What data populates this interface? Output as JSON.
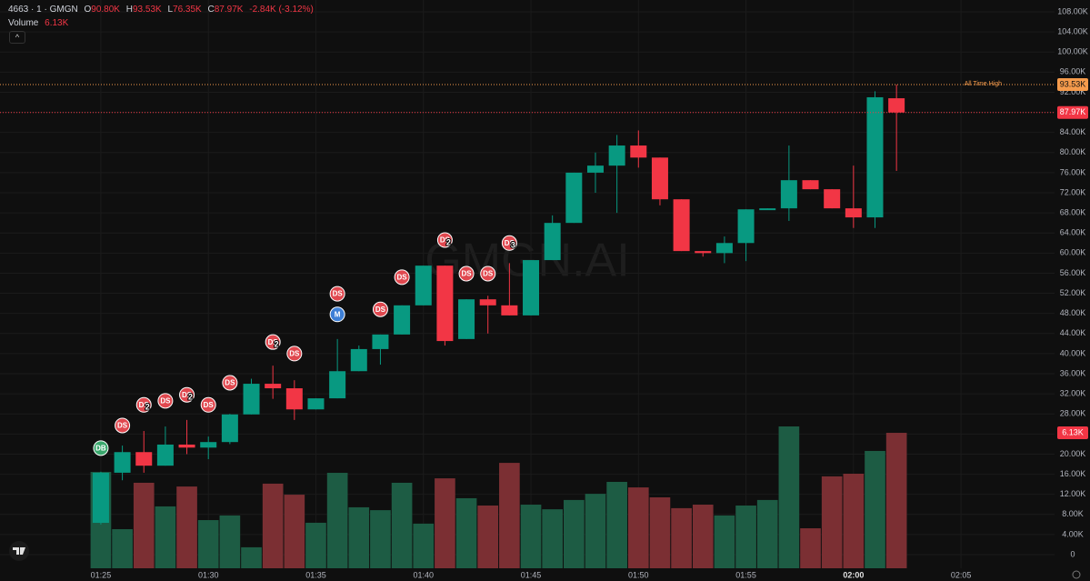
{
  "chart_data": {
    "type": "candlestick",
    "title": "4663 · 1 · GMGN",
    "legend_ohlc": {
      "open_key": "O",
      "open": "90.80K",
      "high_key": "H",
      "high": "93.53K",
      "low_key": "L",
      "low": "76.35K",
      "close_key": "C",
      "close": "87.97K",
      "change": "-2.84K (-3.12%)"
    },
    "volume_legend": {
      "name": "Volume",
      "value": "6.13K"
    },
    "watermark": "GMGN.AI",
    "up_color": "#089981",
    "down_color": "#f23645",
    "open": [
      6.33,
      16.3,
      20.4,
      17.7,
      21.9,
      21.3,
      22.4,
      27.9,
      34.0,
      33.1,
      28.9,
      31.1,
      36.5,
      40.9,
      43.8,
      49.6,
      57.5,
      42.9,
      50.8,
      49.6,
      47.6,
      58.6,
      66.0,
      76.0,
      77.4,
      81.4,
      79.0,
      70.7,
      60.4,
      60.0,
      62.0,
      68.7,
      68.9,
      74.5,
      72.7,
      68.9,
      67.1,
      90.8
    ],
    "high": [
      16.5,
      21.7,
      24.6,
      25.5,
      26.8,
      23.5,
      28.0,
      35.0,
      37.6,
      34.7,
      31.1,
      42.9,
      41.6,
      43.8,
      49.6,
      57.5,
      57.5,
      50.8,
      51.5,
      58.0,
      58.6,
      67.5,
      76.0,
      80.0,
      83.5,
      84.4,
      79.0,
      70.7,
      60.4,
      63.3,
      68.7,
      68.9,
      81.4,
      74.5,
      72.7,
      77.4,
      92.2,
      93.53
    ],
    "low": [
      6.0,
      14.8,
      16.3,
      17.7,
      20.0,
      19.0,
      22.0,
      27.9,
      31.0,
      26.8,
      28.9,
      31.1,
      36.5,
      37.8,
      43.8,
      49.6,
      41.6,
      42.9,
      44.0,
      47.6,
      47.6,
      58.6,
      66.0,
      72.0,
      68.0,
      77.0,
      69.5,
      60.4,
      59.3,
      58.0,
      58.4,
      68.7,
      66.4,
      72.7,
      68.9,
      65.0,
      65.0,
      76.35
    ],
    "close": [
      16.3,
      20.4,
      17.7,
      21.9,
      21.3,
      22.4,
      27.9,
      34.0,
      33.1,
      28.9,
      31.1,
      36.5,
      40.9,
      43.8,
      49.6,
      57.5,
      42.5,
      50.8,
      49.6,
      47.6,
      58.6,
      66.0,
      76.0,
      77.4,
      81.4,
      79.0,
      70.7,
      60.4,
      60.0,
      62.0,
      68.7,
      68.9,
      74.5,
      72.7,
      68.9,
      67.1,
      91.0,
      87.97
    ],
    "volume": {
      "up_color": "#1d5c44",
      "down_color": "#7b2f33",
      "axis": "y2",
      "values": [
        4.36,
        1.77,
        3.87,
        2.8,
        3.7,
        2.18,
        2.39,
        0.95,
        3.83,
        3.33,
        2.06,
        4.32,
        2.76,
        2.63,
        3.87,
        2.02,
        4.07,
        3.17,
        2.84,
        4.77,
        2.88,
        2.67,
        3.09,
        3.37,
        3.91,
        3.66,
        3.21,
        2.72,
        2.88,
        2.39,
        2.84,
        3.09,
        6.42,
        1.81,
        4.16,
        4.28,
        5.31,
        6.13
      ],
      "value_labels": [
        null,
        null,
        null,
        null,
        null,
        null,
        null,
        null,
        null,
        null,
        null,
        null,
        null,
        null,
        null,
        null,
        null,
        null,
        null,
        null,
        null,
        null,
        null,
        null,
        null,
        null,
        null,
        null,
        null,
        null,
        null,
        null,
        null,
        null,
        null,
        null,
        null,
        "6.13K"
      ]
    },
    "xlim": [
      -4.69,
      44.35
    ],
    "xticks": [
      {
        "value": 0,
        "label": "01:25"
      },
      {
        "value": 5,
        "label": "01:30"
      },
      {
        "value": 10,
        "label": "01:35"
      },
      {
        "value": 15,
        "label": "01:40"
      },
      {
        "value": 20,
        "label": "01:45"
      },
      {
        "value": 25,
        "label": "01:50"
      },
      {
        "value": 30,
        "label": "01:55"
      },
      {
        "value": 35,
        "label": "02:00"
      },
      {
        "value": 40,
        "label": "02:05"
      }
    ],
    "ylim": [
      -2.71,
      110.35
    ],
    "y2lim": [
      0,
      25.72
    ],
    "yticks": [
      0,
      {
        "value": 4,
        "label": "4.00K"
      },
      {
        "value": 8,
        "label": "8.00K"
      },
      {
        "value": 12,
        "label": "12.00K"
      },
      {
        "value": 16,
        "label": "16.00K"
      },
      {
        "value": 20,
        "label": "20.00K"
      },
      {
        "value": 24,
        "label": "24.00K"
      },
      {
        "value": 28,
        "label": "28.00K"
      },
      {
        "value": 32,
        "label": "32.00K"
      },
      {
        "value": 36,
        "label": "36.00K"
      },
      {
        "value": 40,
        "label": "40.00K"
      },
      {
        "value": 44,
        "label": "44.00K"
      },
      {
        "value": 48,
        "label": "48.00K"
      },
      {
        "value": 52,
        "label": "52.00K"
      },
      {
        "value": 56,
        "label": "56.00K"
      },
      {
        "value": 60,
        "label": "60.00K"
      },
      {
        "value": 64,
        "label": "64.00K"
      },
      {
        "value": 68,
        "label": "68.00K"
      },
      {
        "value": 72,
        "label": "72.00K"
      },
      {
        "value": 76,
        "label": "76.00K"
      },
      {
        "value": 80,
        "label": "80.00K"
      },
      {
        "value": 84,
        "label": "84.00K"
      },
      {
        "value": 88,
        "label": "88.00K"
      },
      {
        "value": 92,
        "label": "92.00K"
      },
      {
        "value": 96,
        "label": "96.00K"
      },
      {
        "value": 100,
        "label": "100.00K"
      },
      {
        "value": 104,
        "label": "104.00K"
      },
      {
        "value": 108,
        "label": "108.00K"
      }
    ],
    "grid": true,
    "price_lines": [
      {
        "name": "All Time High",
        "value": 93.53,
        "label": "93.53K",
        "color": "#f59b4c"
      },
      {
        "value": 87.97,
        "label": "87.97K",
        "color": "#f23645"
      }
    ],
    "markers": [
      {
        "x": 0,
        "y": 21.2,
        "label": "DB",
        "color": "#3aa76d"
      },
      {
        "x": 1,
        "y": 25.7,
        "label": "DS",
        "color": "#e0484f"
      },
      {
        "x": 2,
        "y": 29.8,
        "label": "DS",
        "count": "2",
        "color": "#e0484f"
      },
      {
        "x": 3,
        "y": 30.6,
        "label": "DS",
        "color": "#e0484f"
      },
      {
        "x": 4,
        "y": 31.8,
        "label": "DS",
        "count": "2",
        "color": "#e0484f"
      },
      {
        "x": 5,
        "y": 29.8,
        "label": "DS",
        "color": "#e0484f"
      },
      {
        "x": 6,
        "y": 34.2,
        "label": "DS",
        "color": "#e0484f"
      },
      {
        "x": 8,
        "y": 42.3,
        "label": "DS",
        "count": "2",
        "color": "#e0484f"
      },
      {
        "x": 9,
        "y": 40.0,
        "label": "DS",
        "color": "#e0484f"
      },
      {
        "x": 11,
        "y": 51.9,
        "label": "DS",
        "color": "#e0484f"
      },
      {
        "x": 11,
        "y": 47.8,
        "label": "M",
        "color": "#3d7fd6"
      },
      {
        "x": 13,
        "y": 48.8,
        "label": "DS",
        "color": "#e0484f"
      },
      {
        "x": 14,
        "y": 55.2,
        "label": "DS",
        "color": "#e0484f"
      },
      {
        "x": 16,
        "y": 62.6,
        "label": "DS",
        "count": "2",
        "color": "#e0484f"
      },
      {
        "x": 17,
        "y": 55.9,
        "label": "DS",
        "color": "#e0484f"
      },
      {
        "x": 18,
        "y": 55.9,
        "label": "DS",
        "color": "#e0484f"
      },
      {
        "x": 19,
        "y": 62.0,
        "label": "DS",
        "count": "3",
        "color": "#e0484f"
      }
    ]
  }
}
